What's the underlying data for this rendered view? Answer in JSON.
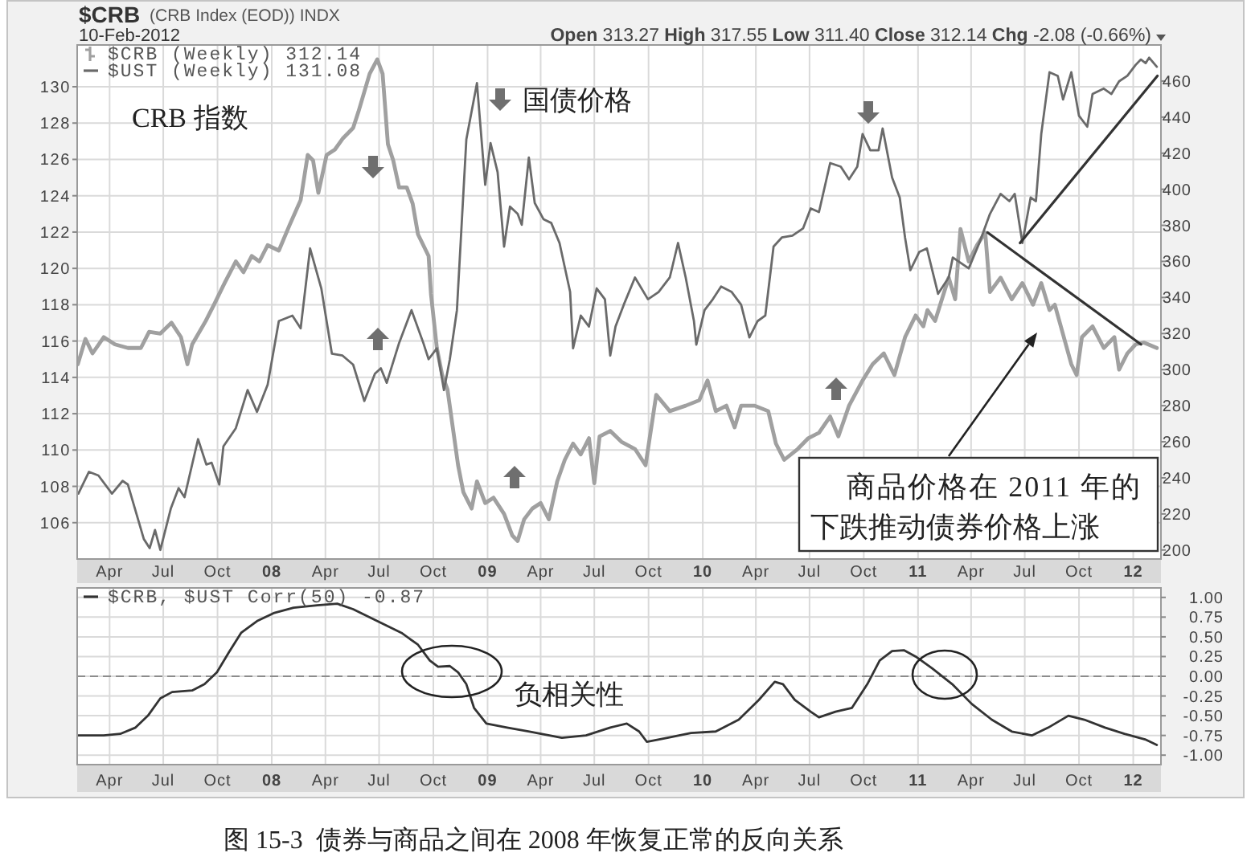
{
  "chart_data": [
    {
      "type": "line",
      "title": "$CRB",
      "annotations": [
        "(CRB Index (EOD)) INDX",
        "10-Feb-2012",
        "Open 313.27 High 317.55 Low 311.40 Close 312.14 Chg -2.08 (-0.66%)",
        "CRB 指数",
        "国债价格",
        "商品价格在 2011 年的",
        "下跌推动债券价格上涨"
      ],
      "xlim": [
        "2007-02-05",
        "2012-02-17"
      ],
      "xticks": [
        {
          "value": "2007-04",
          "label": "Apr"
        },
        {
          "value": "2007-07",
          "label": "Jul"
        },
        {
          "value": "2007-10",
          "label": "Oct"
        },
        {
          "value": "2008-01",
          "label": "08"
        },
        {
          "value": "2008-04",
          "label": "Apr"
        },
        {
          "value": "2008-07",
          "label": "Jul"
        },
        {
          "value": "2008-10",
          "label": "Oct"
        },
        {
          "value": "2009-01",
          "label": "09"
        },
        {
          "value": "2009-04",
          "label": "Apr"
        },
        {
          "value": "2009-07",
          "label": "Jul"
        },
        {
          "value": "2009-10",
          "label": "Oct"
        },
        {
          "value": "2010-01",
          "label": "10"
        },
        {
          "value": "2010-04",
          "label": "Apr"
        },
        {
          "value": "2010-07",
          "label": "Jul"
        },
        {
          "value": "2010-10",
          "label": "Oct"
        },
        {
          "value": "2011-01",
          "label": "11"
        },
        {
          "value": "2011-04",
          "label": "Apr"
        },
        {
          "value": "2011-07",
          "label": "Jul"
        },
        {
          "value": "2011-10",
          "label": "Oct"
        },
        {
          "value": "2012-01",
          "label": "12"
        }
      ],
      "ylim": [
        104,
        132.3
      ],
      "yticks": [
        106,
        108,
        110,
        112,
        114,
        116,
        118,
        120,
        122,
        124,
        126,
        128,
        130
      ],
      "y2lim": [
        195,
        480
      ],
      "y2ticks": [
        200,
        220,
        240,
        260,
        280,
        300,
        320,
        340,
        360,
        380,
        400,
        420,
        440,
        460
      ],
      "grid": true,
      "legend": "top left",
      "series": [
        {
          "name": "$CRB (Weekly) 312.14",
          "color": "#a0a0a0",
          "axis": "y2",
          "x": [
            "2007-02-06",
            "2007-02-19",
            "2007-03-03",
            "2007-03-22",
            "2007-04-10",
            "2007-05-02",
            "2007-05-24",
            "2007-06-07",
            "2007-06-26",
            "2007-07-15",
            "2007-07-31",
            "2007-08-11",
            "2007-08-19",
            "2007-09-11",
            "2007-09-25",
            "2007-10-13",
            "2007-11-01",
            "2007-11-14",
            "2007-11-28",
            "2007-12-11",
            "2007-12-25",
            "2008-01-13",
            "2008-01-31",
            "2008-02-19",
            "2008-03-02",
            "2008-03-11",
            "2008-03-20",
            "2008-04-03",
            "2008-04-17",
            "2008-04-30",
            "2008-05-18",
            "2008-05-27",
            "2008-06-15",
            "2008-06-28",
            "2008-07-07",
            "2008-07-16",
            "2008-07-25",
            "2008-08-04",
            "2008-08-17",
            "2008-08-27",
            "2008-09-05",
            "2008-09-14",
            "2008-09-23",
            "2008-09-27",
            "2008-10-07",
            "2008-10-16",
            "2008-10-25",
            "2008-11-03",
            "2008-11-12",
            "2008-11-21",
            "2008-12-05",
            "2008-12-14",
            "2008-12-28",
            "2009-01-11",
            "2009-01-29",
            "2009-02-12",
            "2009-02-21",
            "2009-03-04",
            "2009-03-18",
            "2009-04-01",
            "2009-04-15",
            "2009-04-29",
            "2009-05-12",
            "2009-05-26",
            "2009-06-08",
            "2009-06-22",
            "2009-07-01",
            "2009-07-10",
            "2009-07-28",
            "2009-08-16",
            "2009-09-08",
            "2009-09-26",
            "2009-10-14",
            "2009-11-06",
            "2009-12-03",
            "2009-12-26",
            "2010-01-09",
            "2010-01-23",
            "2010-02-10",
            "2010-02-24",
            "2010-03-07",
            "2010-03-30",
            "2010-04-22",
            "2010-05-05",
            "2010-05-19",
            "2010-06-11",
            "2010-06-29",
            "2010-07-17",
            "2010-08-05",
            "2010-08-19",
            "2010-09-06",
            "2010-09-29",
            "2010-10-16",
            "2010-11-04",
            "2010-11-22",
            "2010-12-10",
            "2010-12-28",
            "2011-01-10",
            "2011-01-17",
            "2011-01-30",
            "2011-02-22",
            "2011-03-05",
            "2011-03-14",
            "2011-03-28",
            "2011-04-11",
            "2011-04-25",
            "2011-05-03",
            "2011-05-21",
            "2011-06-09",
            "2011-06-27",
            "2011-07-15",
            "2011-07-29",
            "2011-08-12",
            "2011-08-21",
            "2011-09-18",
            "2011-09-27",
            "2011-10-06",
            "2011-10-24",
            "2011-11-12",
            "2011-11-30",
            "2011-12-08",
            "2011-12-22",
            "2012-01-05",
            "2012-01-19",
            "2012-02-10"
          ],
          "values": [
            303,
            317,
            309,
            318,
            314,
            312,
            312,
            321,
            320,
            326,
            318,
            303,
            314,
            327,
            336,
            348,
            360,
            354,
            363,
            360,
            369,
            366,
            380,
            394,
            419,
            416,
            398,
            419,
            422,
            428,
            434,
            443,
            464,
            472,
            464,
            425,
            416,
            401,
            401,
            392,
            375,
            369,
            363,
            342,
            312,
            297,
            289,
            268,
            247,
            232,
            223,
            238,
            226,
            229,
            220,
            208,
            205,
            217,
            223,
            226,
            217,
            238,
            250,
            259,
            253,
            262,
            237,
            263,
            266,
            260,
            256,
            247,
            286,
            277,
            280,
            283,
            294,
            277,
            280,
            268,
            280,
            280,
            277,
            259,
            250,
            256,
            262,
            265,
            274,
            263,
            280,
            294,
            303,
            309,
            297,
            318,
            330,
            324,
            333,
            327,
            351,
            339,
            378,
            360,
            369,
            376,
            343,
            351,
            339,
            348,
            336,
            348,
            333,
            336,
            303,
            297,
            318,
            324,
            312,
            318,
            300,
            309,
            314,
            315,
            312
          ]
        },
        {
          "name": "$UST (Weekly) 131.08",
          "color": "#6a6a6a",
          "axis": "y",
          "x": [
            "2007-02-07",
            "2007-02-25",
            "2007-03-13",
            "2007-04-05",
            "2007-04-23",
            "2007-05-02",
            "2007-05-29",
            "2007-06-08",
            "2007-06-17",
            "2007-06-26",
            "2007-07-14",
            "2007-07-27",
            "2007-08-06",
            "2007-08-29",
            "2007-09-12",
            "2007-09-21",
            "2007-10-04",
            "2007-10-11",
            "2007-11-01",
            "2007-11-21",
            "2007-12-07",
            "2007-12-25",
            "2008-01-13",
            "2008-02-05",
            "2008-02-19",
            "2008-03-06",
            "2008-03-25",
            "2008-04-12",
            "2008-04-30",
            "2008-05-18",
            "2008-06-06",
            "2008-06-24",
            "2008-07-04",
            "2008-07-14",
            "2008-08-04",
            "2008-08-25",
            "2008-09-14",
            "2008-09-23",
            "2008-10-07",
            "2008-10-19",
            "2008-10-29",
            "2008-11-10",
            "2008-11-26",
            "2008-12-14",
            "2008-12-28",
            "2009-01-06",
            "2009-01-18",
            "2009-01-29",
            "2009-02-08",
            "2009-02-21",
            "2009-02-28",
            "2009-03-12",
            "2009-03-22",
            "2009-04-06",
            "2009-04-19",
            "2009-05-03",
            "2009-05-21",
            "2009-05-26",
            "2009-06-08",
            "2009-06-22",
            "2009-07-05",
            "2009-07-19",
            "2009-07-28",
            "2009-08-06",
            "2009-08-20",
            "2009-09-08",
            "2009-09-30",
            "2009-10-18",
            "2009-11-06",
            "2009-11-20",
            "2009-12-03",
            "2009-12-17",
            "2009-12-21",
            "2010-01-04",
            "2010-01-18",
            "2010-02-01",
            "2010-02-19",
            "2010-03-07",
            "2010-03-21",
            "2010-04-04",
            "2010-04-17",
            "2010-05-01",
            "2010-05-15",
            "2010-06-02",
            "2010-06-20",
            "2010-07-03",
            "2010-07-17",
            "2010-08-05",
            "2010-08-23",
            "2010-09-06",
            "2010-09-20",
            "2010-09-29",
            "2010-10-12",
            "2010-10-26",
            "2010-11-02",
            "2010-11-18",
            "2010-12-01",
            "2010-12-10",
            "2010-12-19",
            "2011-01-03",
            "2011-01-16",
            "2011-02-04",
            "2011-02-22",
            "2011-03-01",
            "2011-03-28",
            "2011-04-15",
            "2011-05-03",
            "2011-05-21",
            "2011-06-05",
            "2011-06-14",
            "2011-06-27",
            "2011-07-11",
            "2011-07-20",
            "2011-07-29",
            "2011-08-12",
            "2011-08-26",
            "2011-09-04",
            "2011-09-18",
            "2011-10-01",
            "2011-10-15",
            "2011-10-24",
            "2011-11-12",
            "2011-11-25",
            "2011-12-08",
            "2011-12-22",
            "2012-01-05",
            "2012-01-14",
            "2012-01-22",
            "2012-01-28",
            "2012-02-10"
          ],
          "values": [
            107.6,
            108.8,
            108.6,
            107.6,
            108.3,
            108.1,
            105.1,
            104.6,
            105.6,
            104.5,
            106.8,
            107.9,
            107.4,
            110.6,
            109.2,
            109.3,
            108.1,
            110.2,
            111.2,
            113.3,
            112.1,
            113.6,
            117.1,
            117.4,
            116.7,
            121.1,
            118.9,
            115.3,
            115.2,
            114.7,
            112.7,
            114.2,
            114.5,
            113.7,
            115.9,
            117.7,
            115.9,
            115.0,
            115.6,
            113.3,
            115.0,
            117.7,
            127.1,
            130.2,
            124.6,
            126.9,
            125.3,
            121.2,
            123.4,
            123.0,
            122.4,
            126.1,
            123.6,
            122.7,
            122.5,
            121.4,
            118.7,
            115.6,
            117.4,
            116.8,
            118.9,
            118.3,
            115.2,
            116.8,
            118.0,
            119.5,
            118.3,
            118.7,
            119.5,
            121.4,
            119.5,
            117.1,
            115.8,
            117.7,
            118.3,
            119.0,
            118.7,
            118.0,
            116.2,
            117.1,
            117.4,
            121.2,
            121.7,
            121.8,
            122.2,
            123.3,
            123.1,
            125.8,
            125.6,
            124.9,
            125.6,
            127.4,
            126.5,
            126.5,
            127.7,
            125.0,
            123.9,
            121.7,
            119.9,
            120.9,
            121.1,
            118.6,
            119.5,
            120.6,
            120.0,
            121.4,
            123.0,
            124.1,
            123.7,
            124.1,
            121.4,
            123.9,
            123.7,
            127.4,
            130.8,
            130.6,
            129.3,
            130.8,
            128.4,
            127.8,
            129.6,
            129.9,
            129.6,
            130.3,
            130.6,
            131.2,
            131.5,
            131.3,
            131.6,
            131.1
          ]
        },
        {
          "color": "#333333",
          "axis": "y",
          "x": [
            "2011-06-23",
            "2012-02-11"
          ],
          "values": [
            121.4,
            130.6
          ]
        },
        {
          "color": "#333333",
          "axis": "y2",
          "x": [
            "2011-04-29",
            "2012-01-14"
          ],
          "values": [
            376,
            314
          ]
        }
      ]
    },
    {
      "type": "line",
      "annotations": [
        "负相关性",
        "图 15-3  债券与商品之间在 2008 年恢复正常的反向关系"
      ],
      "xlim": [
        "2007-02-05",
        "2012-02-17"
      ],
      "xticks": [
        {
          "value": "2007-04",
          "label": "Apr"
        },
        {
          "value": "2007-07",
          "label": "Jul"
        },
        {
          "value": "2007-10",
          "label": "Oct"
        },
        {
          "value": "2008-01",
          "label": "08"
        },
        {
          "value": "2008-04",
          "label": "Apr"
        },
        {
          "value": "2008-07",
          "label": "Jul"
        },
        {
          "value": "2008-10",
          "label": "Oct"
        },
        {
          "value": "2009-01",
          "label": "09"
        },
        {
          "value": "2009-04",
          "label": "Apr"
        },
        {
          "value": "2009-07",
          "label": "Jul"
        },
        {
          "value": "2009-10",
          "label": "Oct"
        },
        {
          "value": "2010-01",
          "label": "10"
        },
        {
          "value": "2010-04",
          "label": "Apr"
        },
        {
          "value": "2010-07",
          "label": "Jul"
        },
        {
          "value": "2010-10",
          "label": "Oct"
        },
        {
          "value": "2011-01",
          "label": "11"
        },
        {
          "value": "2011-04",
          "label": "Apr"
        },
        {
          "value": "2011-07",
          "label": "Jul"
        },
        {
          "value": "2011-10",
          "label": "Oct"
        },
        {
          "value": "2012-01",
          "label": "12"
        }
      ],
      "y2lim": [
        -1.12,
        1.12
      ],
      "y2ticks": [
        {
          "value": 1,
          "label": "1.00"
        },
        {
          "value": 0.75,
          "label": "0.75"
        },
        {
          "value": 0.5,
          "label": "0.50"
        },
        {
          "value": 0.25,
          "label": "0.25"
        },
        {
          "value": 0,
          "label": "0.00"
        },
        {
          "value": -0.25,
          "label": "-0.25"
        },
        {
          "value": -0.5,
          "label": "-0.50"
        },
        {
          "value": -0.75,
          "label": "-0.75"
        },
        {
          "value": -1,
          "label": "-1.00"
        }
      ],
      "grid": true,
      "legend": "top left",
      "ref_lines": [
        {
          "axis": "y2",
          "value": 0,
          "line_style": "dashed",
          "color": "#8c8c8c"
        }
      ],
      "series": [
        {
          "name": "$CRB, $UST Corr(50) -0.87",
          "color": "#333333",
          "axis": "y2",
          "x": [
            "2007-02-07",
            "2007-03-22",
            "2007-04-19",
            "2007-05-15",
            "2007-06-05",
            "2007-06-26",
            "2007-07-16",
            "2007-08-19",
            "2007-09-09",
            "2007-09-30",
            "2007-10-20",
            "2007-11-10",
            "2007-12-07",
            "2008-01-04",
            "2008-02-07",
            "2008-03-18",
            "2008-04-21",
            "2008-05-18",
            "2008-06-28",
            "2008-08-08",
            "2008-09-05",
            "2008-09-25",
            "2008-10-09",
            "2008-10-29",
            "2008-11-12",
            "2008-11-26",
            "2008-12-09",
            "2008-12-30",
            "2009-02-03",
            "2009-03-13",
            "2009-05-07",
            "2009-06-17",
            "2009-07-28",
            "2009-08-25",
            "2009-09-15",
            "2009-09-28",
            "2009-11-02",
            "2009-12-12",
            "2010-01-23",
            "2010-03-03",
            "2010-04-06",
            "2010-05-03",
            "2010-05-17",
            "2010-06-06",
            "2010-07-03",
            "2010-07-17",
            "2010-08-14",
            "2010-09-11",
            "2010-10-07",
            "2010-10-28",
            "2010-11-18",
            "2010-12-08",
            "2010-12-28",
            "2011-01-25",
            "2011-02-28",
            "2011-04-02",
            "2011-05-06",
            "2011-06-09",
            "2011-07-13",
            "2011-08-10",
            "2011-09-13",
            "2011-10-10",
            "2011-11-14",
            "2011-12-17",
            "2012-01-21",
            "2012-02-10"
          ],
          "values": [
            -0.75,
            -0.75,
            -0.73,
            -0.65,
            -0.5,
            -0.28,
            -0.2,
            -0.18,
            -0.1,
            0.05,
            0.3,
            0.55,
            0.7,
            0.8,
            0.87,
            0.9,
            0.92,
            0.85,
            0.7,
            0.55,
            0.4,
            0.2,
            0.12,
            0.13,
            0.05,
            -0.1,
            -0.4,
            -0.6,
            -0.65,
            -0.7,
            -0.78,
            -0.75,
            -0.65,
            -0.6,
            -0.7,
            -0.83,
            -0.78,
            -0.72,
            -0.7,
            -0.55,
            -0.3,
            -0.07,
            -0.1,
            -0.3,
            -0.45,
            -0.52,
            -0.45,
            -0.4,
            -0.1,
            0.2,
            0.32,
            0.33,
            0.25,
            0.1,
            -0.1,
            -0.35,
            -0.55,
            -0.7,
            -0.75,
            -0.65,
            -0.5,
            -0.55,
            -0.65,
            -0.73,
            -0.8,
            -0.87
          ]
        }
      ]
    }
  ]
}
